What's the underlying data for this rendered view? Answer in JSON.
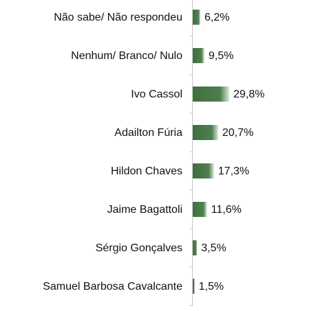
{
  "chart_data": {
    "type": "bar",
    "orientation": "horizontal",
    "categories": [
      "Não sabe/ Não respondeu",
      "Nenhum/ Branco/ Nulo",
      "Ivo Cassol",
      "Adailton Fúria",
      "Hildon Chaves",
      "Jaime Bagattoli",
      "Sérgio Gonçalves",
      "Samuel Barbosa Cavalcante"
    ],
    "values": [
      6.2,
      9.5,
      29.8,
      20.7,
      17.3,
      11.6,
      3.5,
      1.5
    ],
    "value_labels": [
      "6,2%",
      "9,5%",
      "29,8%",
      "20,7%",
      "17,3%",
      "11,6%",
      "3,5%",
      "1,5%"
    ],
    "color": "#4a7a4a"
  }
}
